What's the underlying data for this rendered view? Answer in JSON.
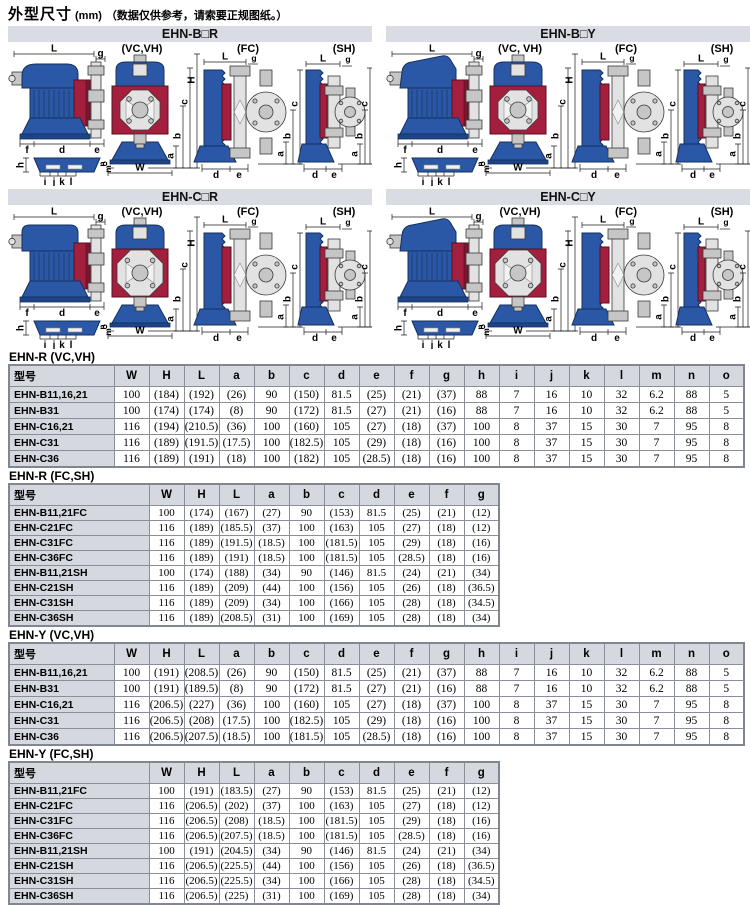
{
  "page_title": {
    "main": "外型尺寸",
    "unit": "(mm)",
    "note": "（数据仅供参考，请索要正规图纸。）"
  },
  "colors": {
    "pump_blue": "#2a58a6",
    "pump_red": "#a31f3d",
    "panel_header_bg": "#d9dde3",
    "table_header_bg": "#d5d9df"
  },
  "dims": {
    "L": "L",
    "g": "g",
    "H": "H",
    "c": "c",
    "b": "b",
    "a": "a",
    "o": "o",
    "W": "W",
    "f": "f",
    "d": "d",
    "e": "e",
    "h": "h",
    "n": "n",
    "m": "m",
    "i": "i",
    "j": "j",
    "k": "k",
    "l": "l"
  },
  "panels": [
    {
      "title": "EHN-B□R",
      "views": [
        "(VC,VH)",
        "(FC)",
        "(SH)"
      ],
      "shape": "B",
      "style": "R"
    },
    {
      "title": "EHN-B□Y",
      "views": [
        "(VC, VH)",
        "(FC)",
        "(SH)"
      ],
      "shape": "B",
      "style": "Y"
    },
    {
      "title": "EHN-C□R",
      "views": [
        "(VC,VH)",
        "(FC)",
        "(SH)"
      ],
      "shape": "C",
      "style": "R"
    },
    {
      "title": "EHN-C□Y",
      "views": [
        "(VC,VH)",
        "(FC)",
        "(SH)"
      ],
      "shape": "C",
      "style": "Y"
    }
  ],
  "tables": [
    {
      "section": "EHN-R (VC,VH)",
      "size": "large",
      "headers": [
        "型号",
        "W",
        "H",
        "L",
        "a",
        "b",
        "c",
        "d",
        "e",
        "f",
        "g",
        "h",
        "i",
        "j",
        "k",
        "l",
        "m",
        "n",
        "o"
      ],
      "rows": [
        [
          "EHN-B11,16,21",
          "100",
          "(184)",
          "(192)",
          "(26)",
          "90",
          "(150)",
          "81.5",
          "(25)",
          "(21)",
          "(37)",
          "88",
          "7",
          "16",
          "10",
          "32",
          "6.2",
          "88",
          "5"
        ],
        [
          "EHN-B31",
          "100",
          "(174)",
          "(174)",
          "(8)",
          "90",
          "(172)",
          "81.5",
          "(27)",
          "(21)",
          "(16)",
          "88",
          "7",
          "16",
          "10",
          "32",
          "6.2",
          "88",
          "5"
        ],
        [
          "EHN-C16,21",
          "116",
          "(194)",
          "(210.5)",
          "(36)",
          "100",
          "(160)",
          "105",
          "(27)",
          "(18)",
          "(37)",
          "100",
          "8",
          "37",
          "15",
          "30",
          "7",
          "95",
          "8"
        ],
        [
          "EHN-C31",
          "116",
          "(189)",
          "(191.5)",
          "(17.5)",
          "100",
          "(182.5)",
          "105",
          "(29)",
          "(18)",
          "(16)",
          "100",
          "8",
          "37",
          "15",
          "30",
          "7",
          "95",
          "8"
        ],
        [
          "EHN-C36",
          "116",
          "(189)",
          "(191)",
          "(18)",
          "100",
          "(182)",
          "105",
          "(28.5)",
          "(18)",
          "(16)",
          "100",
          "8",
          "37",
          "15",
          "30",
          "7",
          "95",
          "8"
        ]
      ]
    },
    {
      "section": "EHN-R (FC,SH)",
      "size": "small",
      "headers": [
        "型号",
        "W",
        "H",
        "L",
        "a",
        "b",
        "c",
        "d",
        "e",
        "f",
        "g"
      ],
      "rows": [
        [
          "EHN-B11,21FC",
          "100",
          "(174)",
          "(167)",
          "(27)",
          "90",
          "(153)",
          "81.5",
          "(25)",
          "(21)",
          "(12)"
        ],
        [
          "EHN-C21FC",
          "116",
          "(189)",
          "(185.5)",
          "(37)",
          "100",
          "(163)",
          "105",
          "(27)",
          "(18)",
          "(12)"
        ],
        [
          "EHN-C31FC",
          "116",
          "(189)",
          "(191.5)",
          "(18.5)",
          "100",
          "(181.5)",
          "105",
          "(29)",
          "(18)",
          "(16)"
        ],
        [
          "EHN-C36FC",
          "116",
          "(189)",
          "(191)",
          "(18.5)",
          "100",
          "(181.5)",
          "105",
          "(28.5)",
          "(18)",
          "(16)"
        ],
        [
          "EHN-B11,21SH",
          "100",
          "(174)",
          "(188)",
          "(34)",
          "90",
          "(146)",
          "81.5",
          "(24)",
          "(21)",
          "(34)"
        ],
        [
          "EHN-C21SH",
          "116",
          "(189)",
          "(209)",
          "(44)",
          "100",
          "(156)",
          "105",
          "(26)",
          "(18)",
          "(36.5)"
        ],
        [
          "EHN-C31SH",
          "116",
          "(189)",
          "(209)",
          "(34)",
          "100",
          "(166)",
          "105",
          "(28)",
          "(18)",
          "(34.5)"
        ],
        [
          "EHN-C36SH",
          "116",
          "(189)",
          "(208.5)",
          "(31)",
          "100",
          "(169)",
          "105",
          "(28)",
          "(18)",
          "(34)"
        ]
      ]
    },
    {
      "section": "EHN-Y (VC,VH)",
      "size": "large",
      "headers": [
        "型号",
        "W",
        "H",
        "L",
        "a",
        "b",
        "c",
        "d",
        "e",
        "f",
        "g",
        "h",
        "i",
        "j",
        "k",
        "l",
        "m",
        "n",
        "o"
      ],
      "rows": [
        [
          "EHN-B11,16,21",
          "100",
          "(191)",
          "(208.5)",
          "(26)",
          "90",
          "(150)",
          "81.5",
          "(25)",
          "(21)",
          "(37)",
          "88",
          "7",
          "16",
          "10",
          "32",
          "6.2",
          "88",
          "5"
        ],
        [
          "EHN-B31",
          "100",
          "(191)",
          "(189.5)",
          "(8)",
          "90",
          "(172)",
          "81.5",
          "(27)",
          "(21)",
          "(16)",
          "88",
          "7",
          "16",
          "10",
          "32",
          "6.2",
          "88",
          "5"
        ],
        [
          "EHN-C16,21",
          "116",
          "(206.5)",
          "(227)",
          "(36)",
          "100",
          "(160)",
          "105",
          "(27)",
          "(18)",
          "(37)",
          "100",
          "8",
          "37",
          "15",
          "30",
          "7",
          "95",
          "8"
        ],
        [
          "EHN-C31",
          "116",
          "(206.5)",
          "(208)",
          "(17.5)",
          "100",
          "(182.5)",
          "105",
          "(29)",
          "(18)",
          "(16)",
          "100",
          "8",
          "37",
          "15",
          "30",
          "7",
          "95",
          "8"
        ],
        [
          "EHN-C36",
          "116",
          "(206.5)",
          "(207.5)",
          "(18.5)",
          "100",
          "(181.5)",
          "105",
          "(28.5)",
          "(18)",
          "(16)",
          "100",
          "8",
          "37",
          "15",
          "30",
          "7",
          "95",
          "8"
        ]
      ]
    },
    {
      "section": "EHN-Y (FC,SH)",
      "size": "small",
      "headers": [
        "型号",
        "W",
        "H",
        "L",
        "a",
        "b",
        "c",
        "d",
        "e",
        "f",
        "g"
      ],
      "rows": [
        [
          "EHN-B11,21FC",
          "100",
          "(191)",
          "(183.5)",
          "(27)",
          "90",
          "(153)",
          "81.5",
          "(25)",
          "(21)",
          "(12)"
        ],
        [
          "EHN-C21FC",
          "116",
          "(206.5)",
          "(202)",
          "(37)",
          "100",
          "(163)",
          "105",
          "(27)",
          "(18)",
          "(12)"
        ],
        [
          "EHN-C31FC",
          "116",
          "(206.5)",
          "(208)",
          "(18.5)",
          "100",
          "(181.5)",
          "105",
          "(29)",
          "(18)",
          "(16)"
        ],
        [
          "EHN-C36FC",
          "116",
          "(206.5)",
          "(207.5)",
          "(18.5)",
          "100",
          "(181.5)",
          "105",
          "(28.5)",
          "(18)",
          "(16)"
        ],
        [
          "EHN-B11,21SH",
          "100",
          "(191)",
          "(204.5)",
          "(34)",
          "90",
          "(146)",
          "81.5",
          "(24)",
          "(21)",
          "(34)"
        ],
        [
          "EHN-C21SH",
          "116",
          "(206.5)",
          "(225.5)",
          "(44)",
          "100",
          "(156)",
          "105",
          "(26)",
          "(18)",
          "(36.5)"
        ],
        [
          "EHN-C31SH",
          "116",
          "(206.5)",
          "(225.5)",
          "(34)",
          "100",
          "(166)",
          "105",
          "(28)",
          "(18)",
          "(34.5)"
        ],
        [
          "EHN-C36SH",
          "116",
          "(206.5)",
          "(225)",
          "(31)",
          "100",
          "(169)",
          "105",
          "(28)",
          "(18)",
          "(34)"
        ]
      ]
    }
  ]
}
